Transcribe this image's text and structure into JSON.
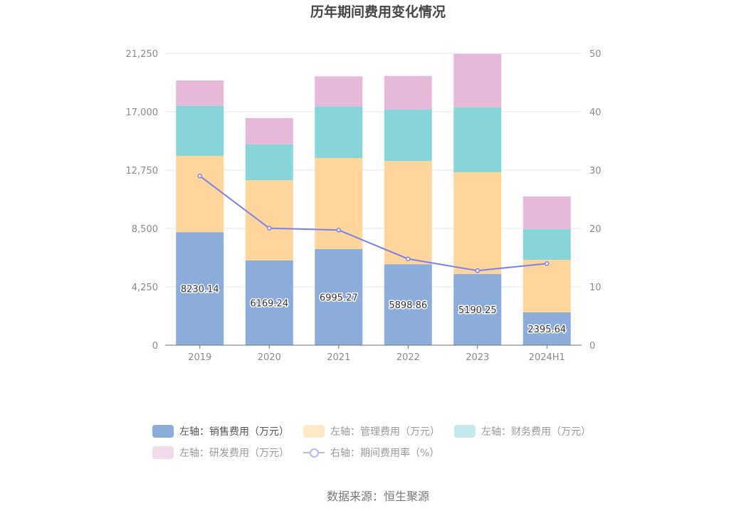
{
  "chart_data": {
    "type": "bar",
    "title": "历年期间费用变化情况",
    "categories": [
      "2019",
      "2020",
      "2021",
      "2022",
      "2023",
      "2024H1"
    ],
    "series": [
      {
        "name": "左轴：销售费用（万元）",
        "type": "bar",
        "axis": "left",
        "stack": "total",
        "color": "#8cacd9",
        "values": [
          8230.14,
          6169.24,
          6995.27,
          5898.86,
          5190.25,
          2395.64
        ],
        "labels_shown": true
      },
      {
        "name": "左轴：管理费用（万元）",
        "type": "bar",
        "axis": "left",
        "stack": "total",
        "color": "#fed69b",
        "values": [
          5557,
          5840,
          6636,
          7509,
          7405,
          3824
        ]
      },
      {
        "name": "左轴：财务费用（万元）",
        "type": "bar",
        "axis": "left",
        "stack": "total",
        "color": "#87d5d8",
        "values": [
          3643,
          2623,
          3768,
          3763,
          4732,
          2244
        ]
      },
      {
        "name": "左轴：研发费用（万元）",
        "type": "bar",
        "axis": "left",
        "stack": "total",
        "color": "#e7b9d8",
        "values": [
          1850,
          1902,
          2177,
          2436,
          3887,
          2368
        ]
      },
      {
        "name": "右轴：期间费用率（%）",
        "type": "line",
        "axis": "right",
        "color": "#7b7ff0",
        "values": [
          28.99,
          20.04,
          19.72,
          14.79,
          12.77,
          13.98
        ]
      }
    ],
    "yaxis_left": {
      "min": 0,
      "max": 21250,
      "ticks": [
        "0",
        "4,250",
        "8,500",
        "12,750",
        "17,000",
        "21,250"
      ]
    },
    "yaxis_right": {
      "min": 0,
      "max": 50,
      "ticks": [
        "0",
        "10",
        "20",
        "30",
        "40",
        "50"
      ]
    },
    "xlabel": "",
    "ylabel": "",
    "grid": true,
    "legend_position": "bottom"
  },
  "legend": [
    {
      "label": "左轴：销售费用（万元）",
      "swatch": "#8cacd9",
      "kind": "box",
      "active": true
    },
    {
      "label": "左轴：管理费用（万元）",
      "swatch": "#fde9c7",
      "kind": "box",
      "active": false
    },
    {
      "label": "左轴：财务费用（万元）",
      "swatch": "#c3e9ec",
      "kind": "box",
      "active": false
    },
    {
      "label": "左轴：研发费用（万元）",
      "swatch": "#f3dbeb",
      "kind": "box",
      "active": false
    },
    {
      "label": "右轴：期间费用率（%）",
      "swatch": "#b8baf5",
      "kind": "line",
      "active": false
    }
  ],
  "source": "数据来源：恒生聚源"
}
